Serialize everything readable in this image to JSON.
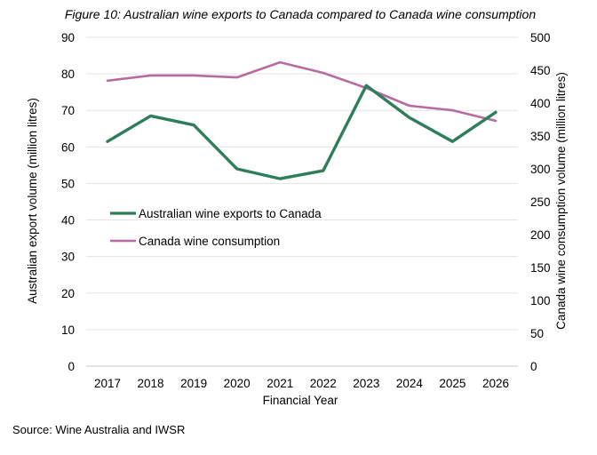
{
  "chart_data": {
    "type": "line",
    "title": "Figure 10: Australian wine exports to Canada compared to Canada wine consumption",
    "xlabel": "Financial Year",
    "ylabel_left": "Australian export volume (million litres)",
    "ylabel_right": "Canada wine consumption volume (million litres)",
    "categories": [
      "2017",
      "2018",
      "2019",
      "2020",
      "2021",
      "2022",
      "2023",
      "2024",
      "2025",
      "2026"
    ],
    "ylim_left": [
      0,
      90
    ],
    "yticks_left": [
      0,
      10,
      20,
      30,
      40,
      50,
      60,
      70,
      80,
      90
    ],
    "ylim_right": [
      0,
      500
    ],
    "yticks_right": [
      0,
      50,
      100,
      150,
      200,
      250,
      300,
      350,
      400,
      450,
      500
    ],
    "grid": true,
    "legend_position": "middle-left",
    "series": [
      {
        "name": "Australian wine exports to Canada",
        "axis": "left",
        "color": "#2e7d5b",
        "values": [
          61.5,
          68.5,
          66.0,
          54.0,
          51.3,
          53.5,
          76.8,
          68.0,
          61.5,
          69.5
        ]
      },
      {
        "name": "Canada wine consumption",
        "axis": "right",
        "color": "#b76ba3",
        "values": [
          434,
          442,
          442,
          439,
          462,
          446,
          423,
          396,
          389,
          373
        ]
      }
    ]
  },
  "source": "Source: Wine Australia and IWSR"
}
